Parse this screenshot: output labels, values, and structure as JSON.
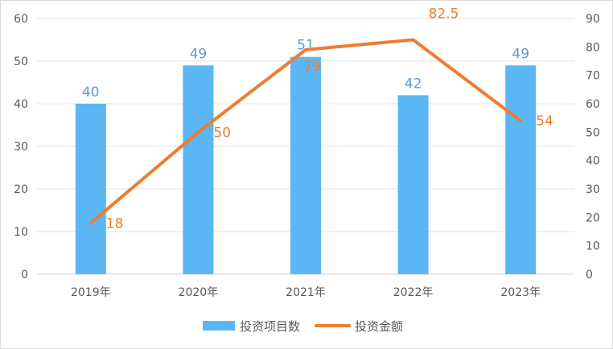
{
  "chart_data": {
    "type": "bar+line",
    "categories": [
      "2019年",
      "2020年",
      "2021年",
      "2022年",
      "2023年"
    ],
    "series": [
      {
        "name": "投资项目数",
        "type": "bar",
        "axis": "left",
        "values": [
          40,
          49,
          51,
          42,
          49
        ],
        "color": "#5BB6F4",
        "label_color": "#5B9BD5"
      },
      {
        "name": "投资金额",
        "type": "line",
        "axis": "right",
        "values": [
          18,
          50,
          79,
          82.5,
          54
        ],
        "color": "#ED7D31",
        "label_color": "#ED7D31"
      }
    ],
    "left_axis": {
      "ylim": [
        0,
        60
      ],
      "ticks": [
        0,
        10,
        20,
        30,
        40,
        50,
        60
      ]
    },
    "right_axis": {
      "ylim": [
        0,
        90
      ],
      "ticks": [
        0,
        10,
        20,
        30,
        40,
        50,
        60,
        70,
        80,
        90
      ]
    },
    "grid": true,
    "legend_position": "bottom"
  }
}
